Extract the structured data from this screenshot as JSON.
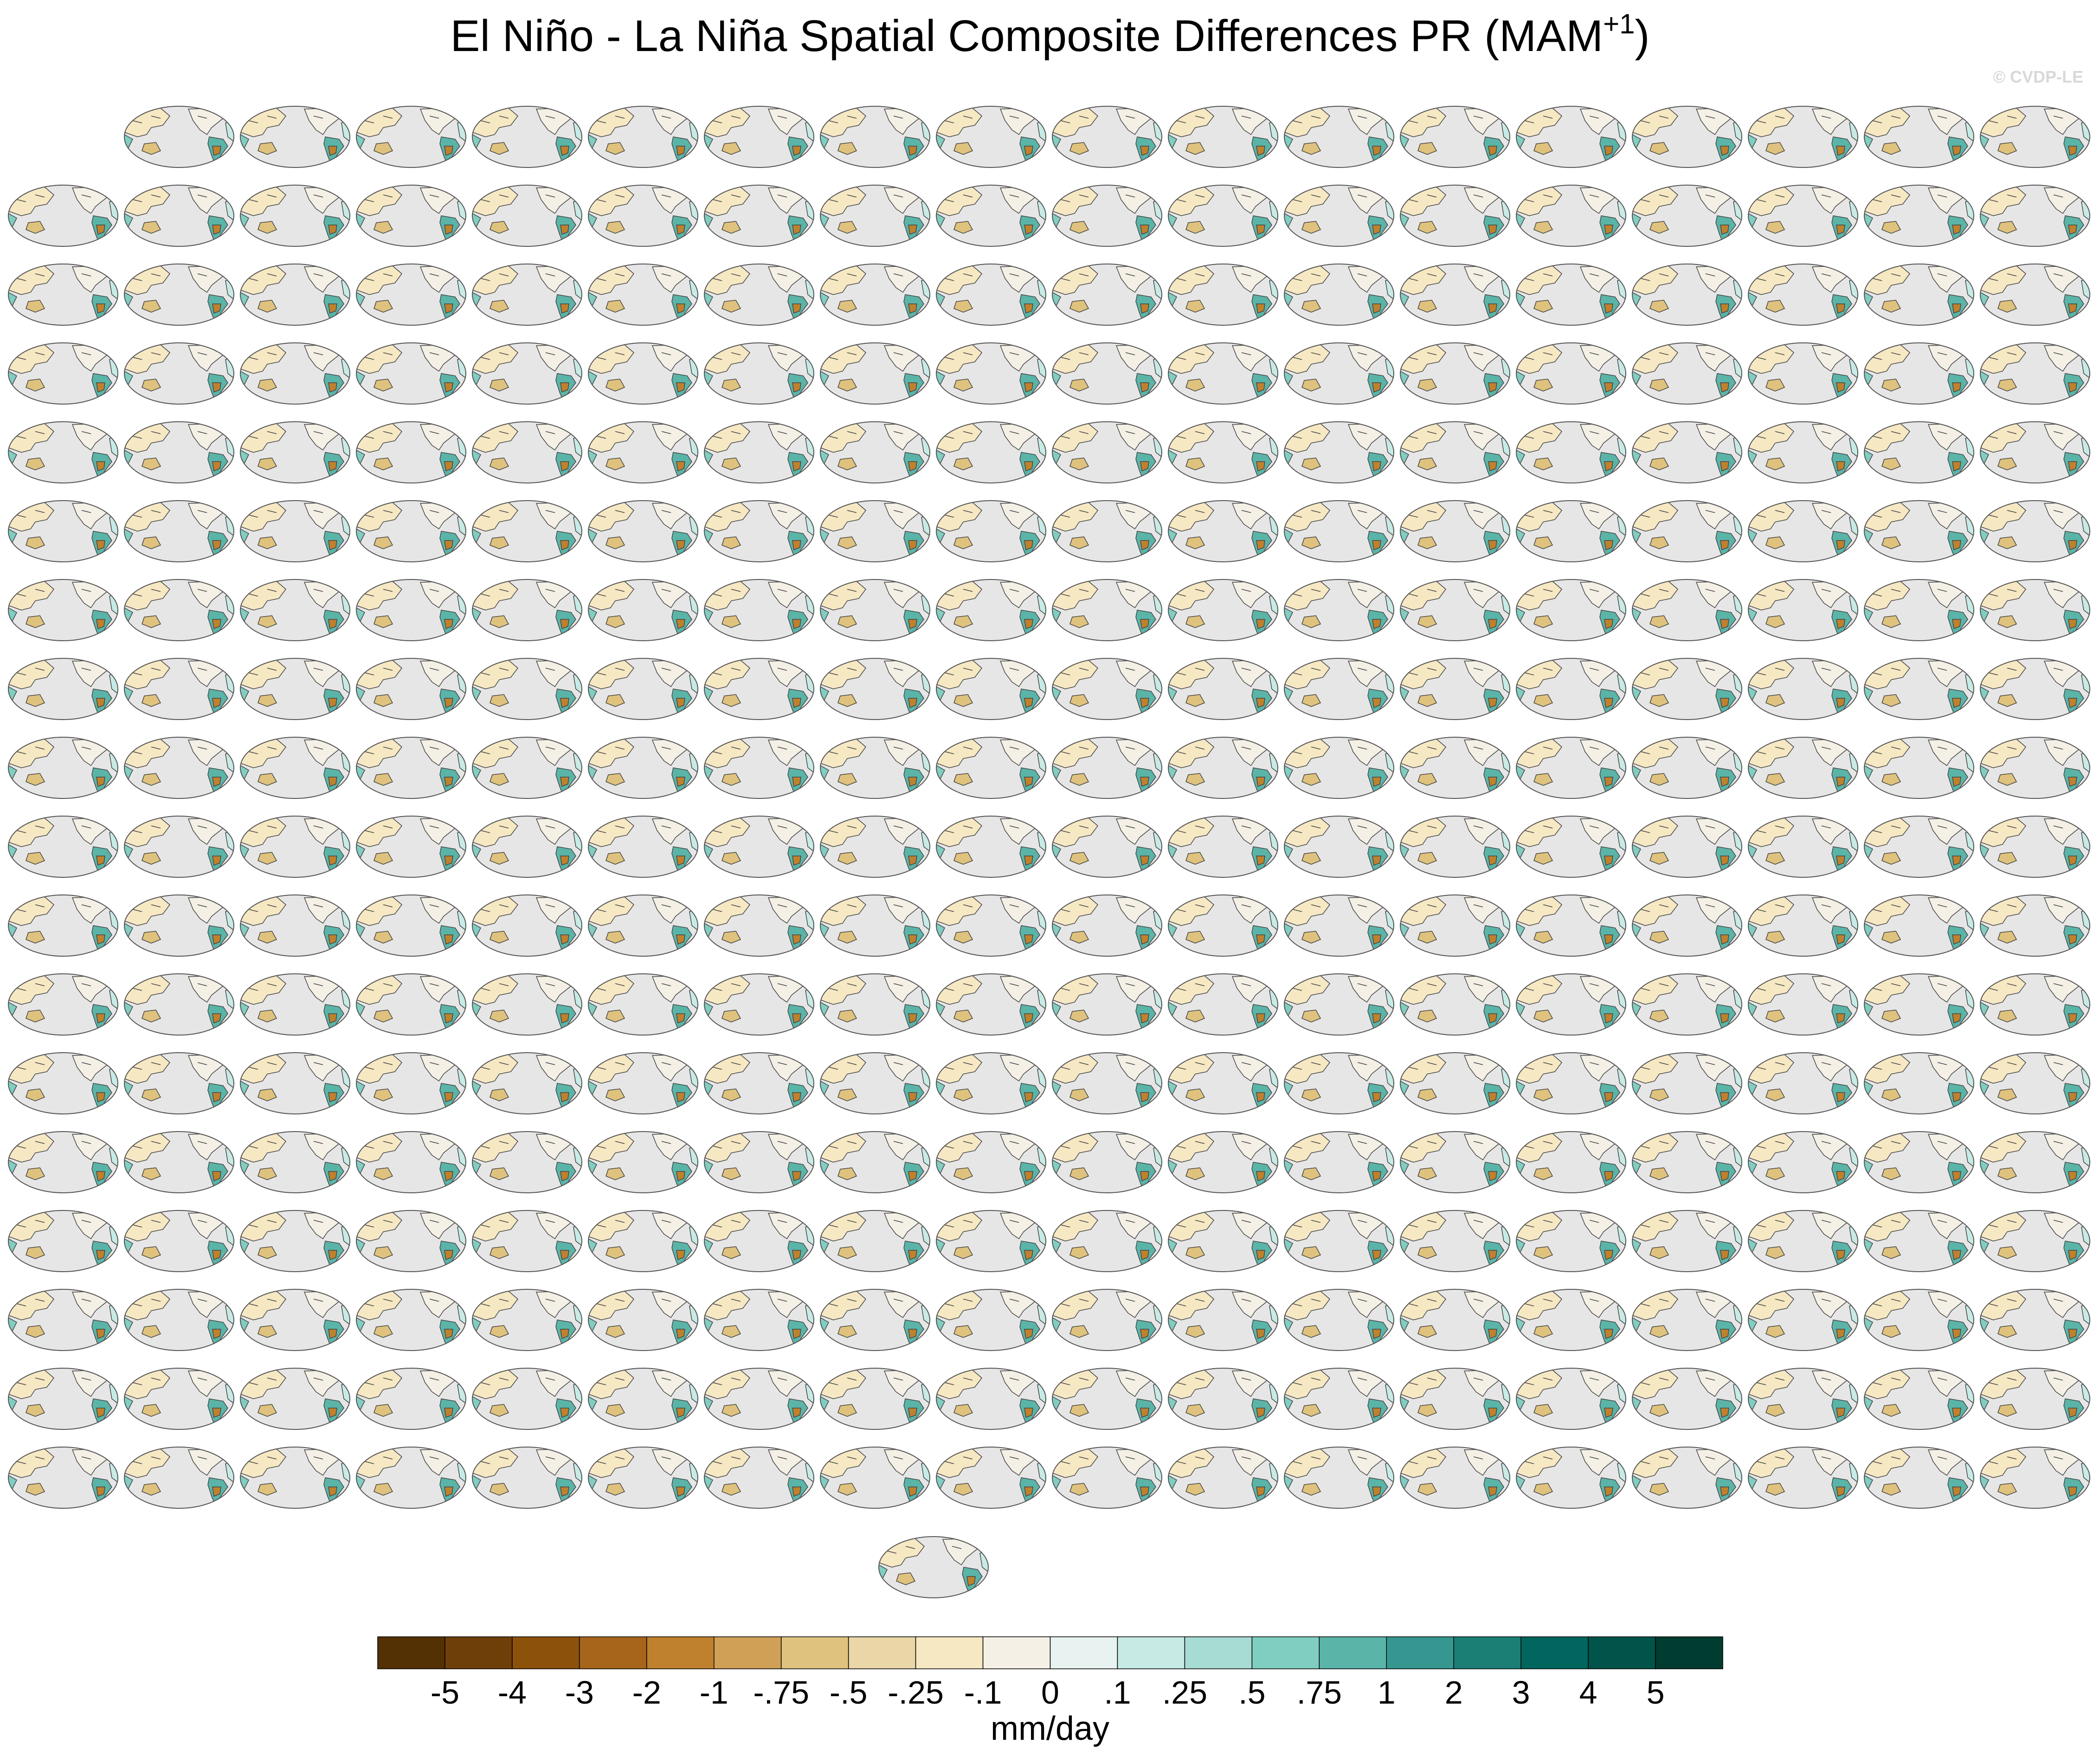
{
  "title": {
    "parts": [
      "El Niño - La Niña Spatial Composite Differences PR (MAM",
      "+1",
      ")"
    ]
  },
  "watermark": "© CVDP-LE",
  "colorbar": {
    "colors": [
      "#543005",
      "#6f3f0a",
      "#8c510a",
      "#a6651b",
      "#bf812d",
      "#cfa056",
      "#dfc27d",
      "#ead6a6",
      "#f6e8c3",
      "#f5f0e6",
      "#e8f3f1",
      "#c7eae5",
      "#a6dcd3",
      "#80cdc1",
      "#5ab4a8",
      "#35978f",
      "#1b7f75",
      "#01665e",
      "#00544a",
      "#003c30"
    ],
    "ticks": [
      -5,
      -4,
      -3,
      -2,
      -1,
      {
        "value": -0.75,
        "label": "-.75"
      },
      {
        "value": -0.5,
        "label": "-.5"
      },
      {
        "value": -0.25,
        "label": "-.25"
      },
      {
        "value": -0.1,
        "label": "-.1"
      },
      0,
      {
        "value": 0.1,
        "label": ".1"
      },
      {
        "value": 0.25,
        "label": ".25"
      },
      {
        "value": 0.5,
        "label": ".5"
      },
      {
        "value": 0.75,
        "label": ".75"
      },
      1,
      2,
      3,
      4,
      5
    ],
    "label": "mm/day"
  }
}
